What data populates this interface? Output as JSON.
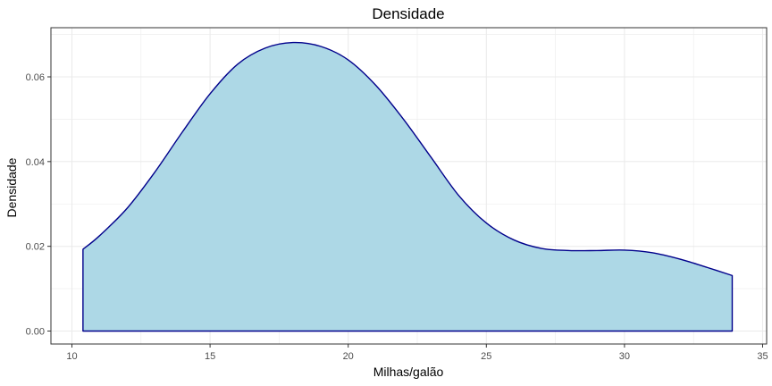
{
  "chart_data": {
    "type": "area",
    "title": "Densidade",
    "xlabel": "Milhas/galão",
    "ylabel": "Densidade",
    "xlim": [
      10,
      35
    ],
    "ylim": [
      0,
      0.07
    ],
    "x_ticks": [
      10,
      15,
      20,
      25,
      30,
      35
    ],
    "x_tick_labels": [
      "10",
      "15",
      "20",
      "25",
      "30",
      "35"
    ],
    "y_ticks": [
      0,
      0.02,
      0.04,
      0.06
    ],
    "y_tick_labels": [
      "0.00",
      "0.02",
      "0.04",
      "0.06"
    ],
    "grid": true,
    "legend": "none",
    "series": [
      {
        "x": [
          10.4,
          11.0,
          12.0,
          13.0,
          14.0,
          15.0,
          16.0,
          17.0,
          18.0,
          19.0,
          20.0,
          21.0,
          22.0,
          23.0,
          24.0,
          25.0,
          26.0,
          27.0,
          28.0,
          29.0,
          30.0,
          31.0,
          32.0,
          33.0,
          33.9
        ],
        "y": [
          0.0193,
          0.0225,
          0.029,
          0.0375,
          0.047,
          0.056,
          0.063,
          0.0668,
          0.0681,
          0.0672,
          0.064,
          0.058,
          0.05,
          0.041,
          0.032,
          0.0255,
          0.0215,
          0.0195,
          0.019,
          0.019,
          0.0191,
          0.0185,
          0.017,
          0.015,
          0.0131
        ],
        "fill": "#add8e6",
        "stroke": "#00008b"
      }
    ]
  },
  "colors": {
    "fill": "#add8e6",
    "line": "#00008b",
    "grid": "#ebebeb",
    "panel_border": "#333333"
  }
}
